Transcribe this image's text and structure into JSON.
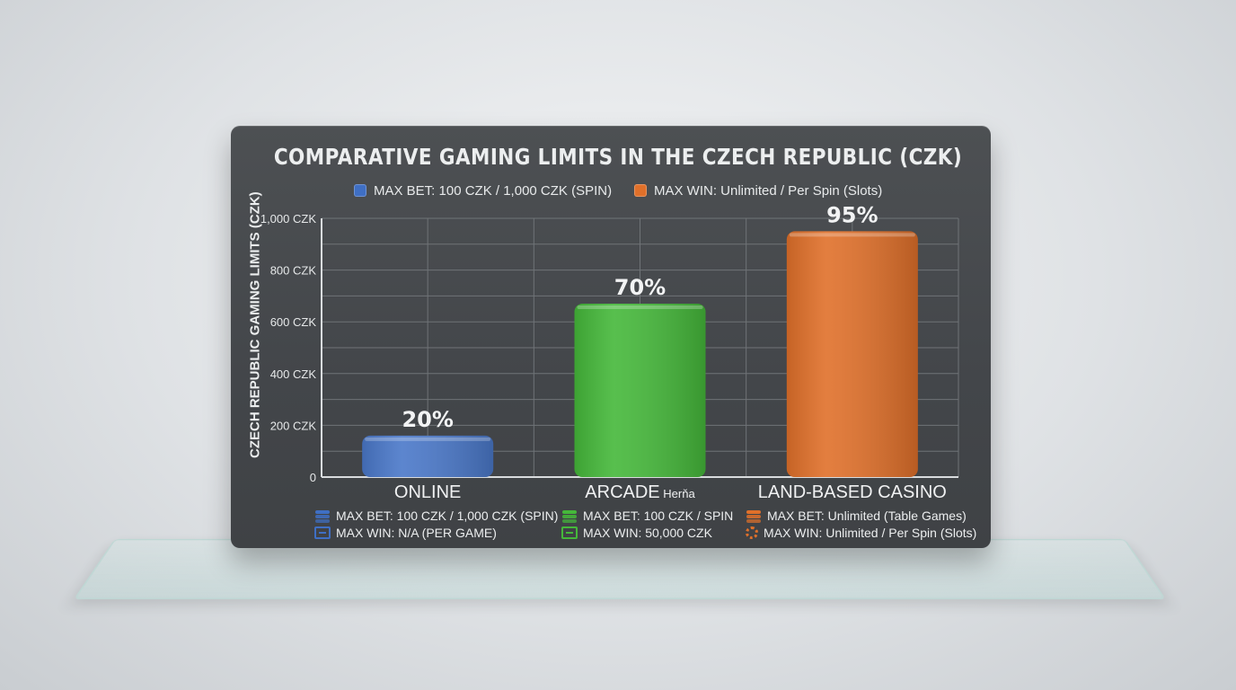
{
  "chart_data": {
    "type": "bar",
    "title": "COMPARATIVE GAMING LIMITS IN THE CZECH REPUBLIC (CZK)",
    "ylabel": "CZECH REPUBLIC GAMING LIMITS (CZK)",
    "xlabel": "",
    "ylim": [
      0,
      1000
    ],
    "yticks": [
      {
        "value": 0,
        "label": "0"
      },
      {
        "value": 200,
        "label": "200 CZK"
      },
      {
        "value": 400,
        "label": "400 CZK"
      },
      {
        "value": 600,
        "label": "600 CZK"
      },
      {
        "value": 800,
        "label": "800 CZK"
      },
      {
        "value": 1000,
        "label": "1,000 CZK"
      }
    ],
    "grid": true,
    "legend_position": "top",
    "legend": [
      {
        "label": "MAX BET: 100 CZK / 1,000 CZK (SPIN)",
        "color": "#3f6fc4"
      },
      {
        "label": "MAX WIN: Unlimited / Per Spin (Slots)",
        "color": "#e0702a"
      }
    ],
    "categories": [
      "ONLINE",
      "ARCADE",
      "LAND-BASED CASINO"
    ],
    "category_suffix": [
      "",
      "Herňa",
      ""
    ],
    "values": [
      160,
      670,
      950
    ],
    "data_labels": [
      "20%",
      "70%",
      "95%"
    ],
    "colors": [
      "#4a78c9",
      "#45b83a",
      "#e0702a"
    ],
    "details": [
      {
        "bet": "MAX BET: 100 CZK / 1,000 CZK (SPIN)",
        "win": "MAX WIN: N/A (PER GAME)",
        "icon_color": "#3f6fc4"
      },
      {
        "bet": "MAX BET: 100 CZK / SPIN",
        "win": "MAX WIN: 50,000 CZK",
        "icon_color": "#45b83a"
      },
      {
        "bet": "MAX BET: Unlimited (Table Games)",
        "win": "MAX WIN: Unlimited / Per Spin (Slots)",
        "icon_color": "#e0702a"
      }
    ]
  }
}
